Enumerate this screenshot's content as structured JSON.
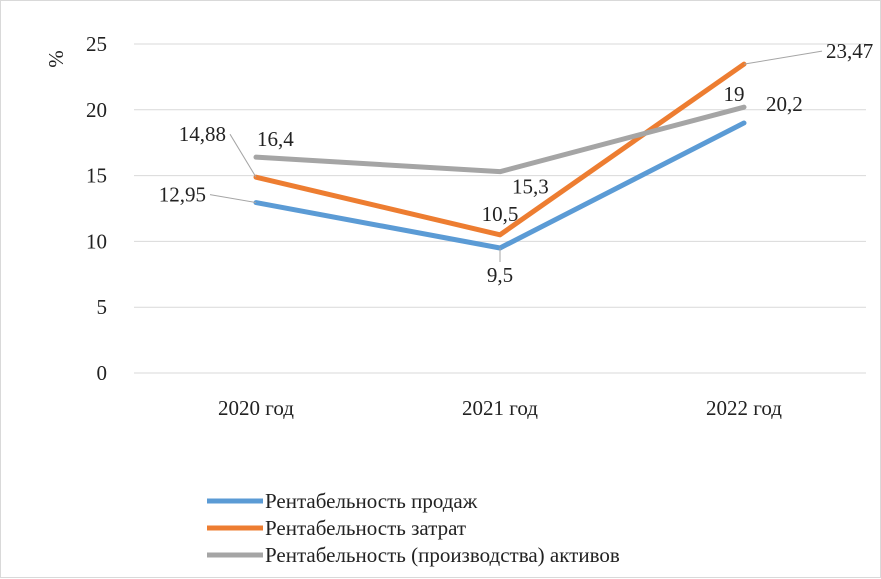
{
  "chart_data": {
    "type": "line",
    "categories": [
      "2020 год",
      "2021 год",
      "2022 год"
    ],
    "ylabel": "%",
    "ylim": [
      0,
      25
    ],
    "yticks": [
      0,
      5,
      10,
      15,
      20,
      25
    ],
    "grid": true,
    "legend_position": "bottom-left",
    "series": [
      {
        "name": "Рентабельность продаж",
        "color": "#5b9bd5",
        "values": [
          12.95,
          9.5,
          19
        ],
        "labels": [
          "12,95",
          "9,5",
          "19"
        ]
      },
      {
        "name": "Рентабельность затрат",
        "color": "#ed7d31",
        "values": [
          14.88,
          10.5,
          23.47
        ],
        "labels": [
          "14,88",
          "10,5",
          "23,47"
        ]
      },
      {
        "name": "Рентабельность (производства) активов",
        "color": "#a5a5a5",
        "values": [
          16.4,
          15.3,
          20.2
        ],
        "labels": [
          "16,4",
          "15,3",
          "20,2"
        ]
      }
    ]
  }
}
